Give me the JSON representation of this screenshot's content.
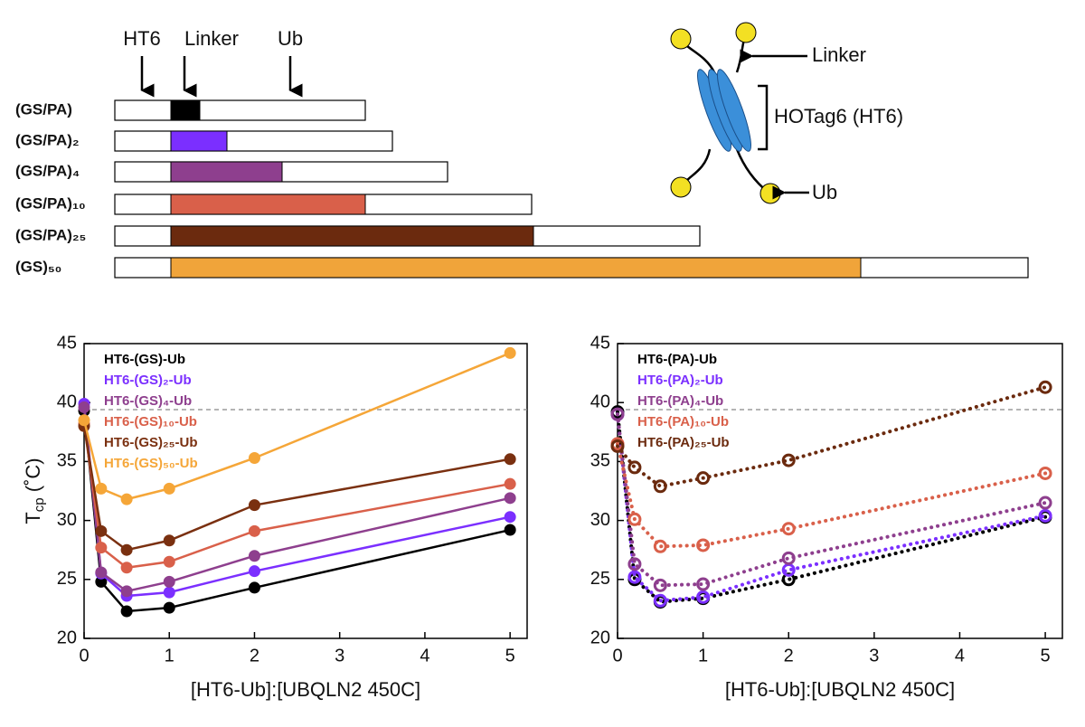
{
  "diagram": {
    "top_labels": [
      "HT6",
      "Linker",
      "Ub"
    ],
    "rows": [
      {
        "label": "(GS/PA)",
        "color": "#000000"
      },
      {
        "label": "(GS/PA)₂",
        "color": "#7b2fff"
      },
      {
        "label": "(GS/PA)₄",
        "color": "#8e3f8e"
      },
      {
        "label": "(GS/PA)₁₀",
        "color": "#d9604a"
      },
      {
        "label": "(GS/PA)₂₅",
        "color": "#6b2a0e"
      },
      {
        "label": "(GS)₅₀",
        "color": "#f0a43a"
      }
    ],
    "schematic_labels": {
      "linker": "Linker",
      "tag": "HOTag6 (HT6)",
      "ub": "Ub"
    }
  },
  "chart_data": [
    {
      "type": "line",
      "marker": "filled",
      "linestyle": "solid",
      "legend": "upper left",
      "ylabel": [
        "T",
        "cp",
        " (˚C)"
      ],
      "xlabel": "[HT6-Ub]:[UBQLN2 450C]",
      "x": [
        0,
        0.2,
        0.5,
        1,
        2,
        5
      ],
      "xlim": [
        0,
        5.2
      ],
      "xticks": [
        0,
        1,
        2,
        3,
        4,
        5
      ],
      "ylim": [
        20,
        45
      ],
      "yticks": [
        20,
        25,
        30,
        35,
        40,
        45
      ],
      "reference_line": 39.4,
      "series": [
        {
          "name": "HT6-(GS)-Ub",
          "color": "#000000",
          "values": [
            39.3,
            24.8,
            22.3,
            22.6,
            24.3,
            29.2
          ]
        },
        {
          "name": "HT6-(GS)₂-Ub",
          "color": "#7b2fff",
          "values": [
            39.9,
            25.5,
            23.6,
            23.9,
            25.7,
            30.3
          ]
        },
        {
          "name": "HT6-(GS)₄-Ub",
          "color": "#8e3f8e",
          "values": [
            39.6,
            25.6,
            24.0,
            24.8,
            27.0,
            31.9
          ]
        },
        {
          "name": "HT6-(GS)₁₀-Ub",
          "color": "#d9604a",
          "values": [
            38.2,
            27.7,
            26.0,
            26.5,
            29.1,
            33.1
          ]
        },
        {
          "name": "HT6-(GS)₂₅-Ub",
          "color": "#7a3010",
          "values": [
            38.0,
            29.1,
            27.5,
            28.3,
            31.3,
            35.2
          ]
        },
        {
          "name": "HT6-(GS)₅₀-Ub",
          "color": "#f5a638",
          "values": [
            38.5,
            32.7,
            31.8,
            32.7,
            35.3,
            44.2
          ]
        }
      ]
    },
    {
      "type": "line",
      "marker": "open",
      "linestyle": "dotted",
      "legend": "upper left",
      "xlabel": "[HT6-Ub]:[UBQLN2 450C]",
      "x": [
        0,
        0.2,
        0.5,
        1,
        2,
        5
      ],
      "xlim": [
        0,
        5.2
      ],
      "xticks": [
        0,
        1,
        2,
        3,
        4,
        5
      ],
      "ylim": [
        20,
        45
      ],
      "yticks": [
        20,
        25,
        30,
        35,
        40,
        45
      ],
      "reference_line": 39.4,
      "series": [
        {
          "name": "HT6-(PA)-Ub",
          "color": "#000000",
          "values": [
            39.2,
            25.0,
            23.1,
            23.4,
            25.0,
            30.3
          ]
        },
        {
          "name": "HT6-(PA)₂-Ub",
          "color": "#7b2fff",
          "values": [
            39.0,
            25.2,
            23.2,
            23.5,
            25.8,
            30.4
          ]
        },
        {
          "name": "HT6-(PA)₄-Ub",
          "color": "#8e3f8e",
          "values": [
            39.0,
            26.3,
            24.5,
            24.6,
            26.8,
            31.5
          ]
        },
        {
          "name": "HT6-(PA)₁₀-Ub",
          "color": "#d9604a",
          "values": [
            36.5,
            30.1,
            27.8,
            27.9,
            29.3,
            34.0
          ]
        },
        {
          "name": "HT6-(PA)₂₅-Ub",
          "color": "#6b2a0e",
          "values": [
            36.3,
            34.5,
            32.9,
            33.6,
            35.1,
            41.3
          ]
        }
      ]
    }
  ]
}
